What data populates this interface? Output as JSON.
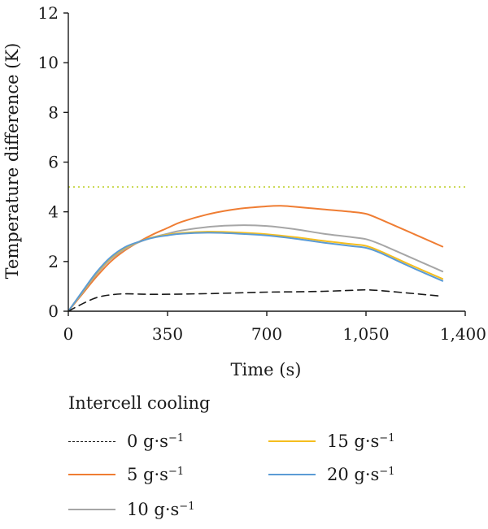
{
  "chart_data": {
    "type": "line",
    "xlabel": "Time (s)",
    "ylabel": "Temperature difference (K)",
    "xlim": [
      0,
      1400
    ],
    "ylim": [
      0,
      12
    ],
    "x_ticks": [
      0,
      350,
      700,
      1050,
      1400
    ],
    "x_tick_labels": [
      "0",
      "350",
      "700",
      "1,050",
      "1,400"
    ],
    "y_ticks": [
      0,
      2,
      4,
      6,
      8,
      10,
      12
    ],
    "y_tick_labels": [
      "0",
      "2",
      "4",
      "6",
      "8",
      "10",
      "12"
    ],
    "grid": false,
    "reference_line": {
      "y": 5,
      "color": "#c8d64a",
      "style": "dotted"
    },
    "legend": {
      "title": "Intercell cooling",
      "placement": "below"
    },
    "series": [
      {
        "name": "0 g·s",
        "unit_superscript": "−1",
        "color": "#1a1a1a",
        "style": "dashed",
        "x": [
          0,
          50,
          100,
          150,
          200,
          250,
          300,
          400,
          500,
          600,
          700,
          800,
          900,
          1000,
          1050,
          1100,
          1200,
          1320
        ],
        "y": [
          0,
          0.3,
          0.55,
          0.66,
          0.7,
          0.69,
          0.68,
          0.69,
          0.71,
          0.74,
          0.77,
          0.78,
          0.8,
          0.84,
          0.86,
          0.83,
          0.73,
          0.6
        ]
      },
      {
        "name": "5 g·s",
        "unit_superscript": "−1",
        "color": "#ef7d33",
        "style": "solid",
        "x": [
          0,
          50,
          100,
          150,
          200,
          250,
          300,
          350,
          400,
          500,
          600,
          700,
          750,
          800,
          900,
          1000,
          1050,
          1100,
          1200,
          1320
        ],
        "y": [
          0,
          0.7,
          1.4,
          2.0,
          2.45,
          2.8,
          3.1,
          3.35,
          3.6,
          3.92,
          4.12,
          4.22,
          4.24,
          4.2,
          4.1,
          4.0,
          3.92,
          3.7,
          3.2,
          2.6
        ]
      },
      {
        "name": "10 g·s",
        "unit_superscript": "−1",
        "color": "#a6a6a6",
        "style": "solid",
        "x": [
          0,
          50,
          100,
          150,
          200,
          250,
          300,
          350,
          400,
          500,
          600,
          700,
          800,
          900,
          1000,
          1050,
          1100,
          1200,
          1320
        ],
        "y": [
          0,
          0.75,
          1.5,
          2.1,
          2.5,
          2.78,
          2.98,
          3.12,
          3.25,
          3.4,
          3.46,
          3.43,
          3.3,
          3.12,
          2.98,
          2.9,
          2.7,
          2.2,
          1.6
        ]
      },
      {
        "name": "15 g·s",
        "unit_superscript": "−1",
        "color": "#f5be1f",
        "style": "solid",
        "x": [
          0,
          50,
          100,
          150,
          200,
          250,
          300,
          350,
          400,
          500,
          600,
          700,
          800,
          900,
          1000,
          1050,
          1100,
          1200,
          1320
        ],
        "y": [
          0,
          0.78,
          1.55,
          2.15,
          2.55,
          2.8,
          2.98,
          3.08,
          3.15,
          3.2,
          3.17,
          3.1,
          2.98,
          2.83,
          2.7,
          2.63,
          2.42,
          1.9,
          1.3
        ]
      },
      {
        "name": "20 g·s",
        "unit_superscript": "−1",
        "color": "#5b9bd5",
        "style": "solid",
        "x": [
          0,
          50,
          100,
          150,
          200,
          250,
          300,
          350,
          400,
          500,
          600,
          700,
          800,
          900,
          1000,
          1050,
          1100,
          1200,
          1320
        ],
        "y": [
          0,
          0.8,
          1.58,
          2.18,
          2.58,
          2.8,
          2.96,
          3.05,
          3.12,
          3.16,
          3.12,
          3.05,
          2.92,
          2.76,
          2.62,
          2.55,
          2.35,
          1.82,
          1.22
        ]
      }
    ]
  }
}
